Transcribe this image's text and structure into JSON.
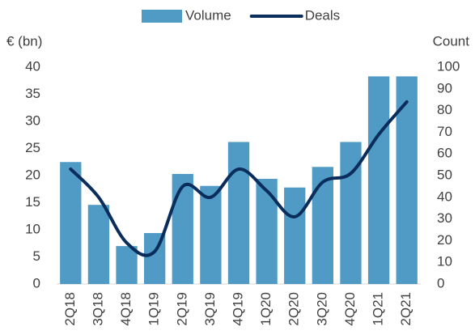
{
  "chart_data": {
    "type": "bar",
    "categories": [
      "2Q18",
      "3Q18",
      "4Q18",
      "1Q19",
      "2Q19",
      "3Q19",
      "4Q19",
      "1Q20",
      "2Q20",
      "3Q20",
      "4Q20",
      "1Q21",
      "2Q21"
    ],
    "series": [
      {
        "name": "Volume",
        "type": "bar",
        "color": "#4f9bc6",
        "values": [
          22.5,
          14.6,
          7,
          9.4,
          20.3,
          18.1,
          26.2,
          19.4,
          17.8,
          21.6,
          26.2,
          38.3,
          38.3
        ]
      },
      {
        "name": "Deals",
        "type": "line",
        "axis": "y2",
        "color": "#0b2d5b",
        "values": [
          53,
          40,
          19,
          15,
          45,
          40,
          53,
          43,
          31,
          47,
          51,
          69,
          84
        ]
      }
    ],
    "ylabel": "€ (bn)",
    "y2label": "Count",
    "ylim": [
      0,
      40
    ],
    "yticks": [
      0,
      5,
      10,
      15,
      20,
      25,
      30,
      35,
      40
    ],
    "y2lim": [
      0,
      100
    ],
    "y2ticks": [
      0,
      10,
      20,
      30,
      40,
      50,
      60,
      70,
      80,
      90,
      100
    ],
    "legend": "top"
  }
}
